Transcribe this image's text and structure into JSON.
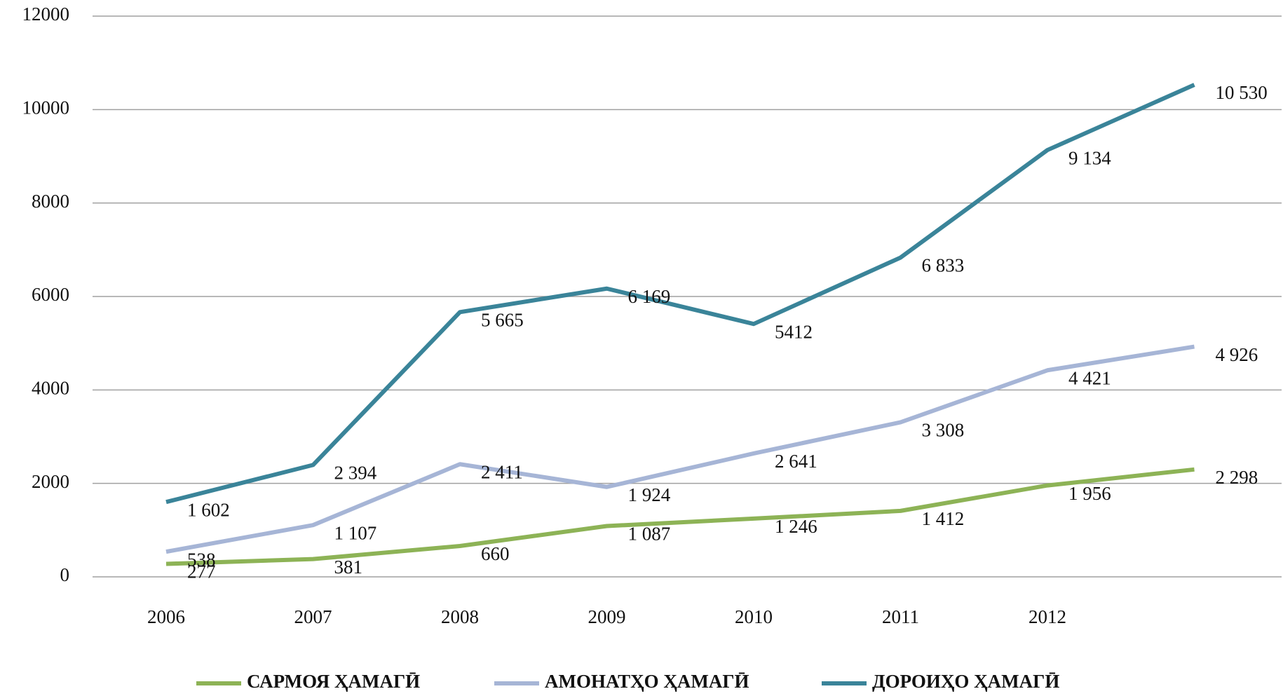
{
  "chart_data": {
    "type": "line",
    "categories": [
      "2006",
      "2007",
      "2008",
      "2009",
      "2010",
      "2011",
      "2012",
      null
    ],
    "series": [
      {
        "name": "САРМОЯ ҲАМАГӢ",
        "color": "#8db356",
        "values": [
          277,
          381,
          660,
          1087,
          1246,
          1412,
          1956,
          2298
        ],
        "value_labels": [
          "277",
          "381",
          "660",
          "1 087",
          "1 246",
          "1 412",
          "1 956",
          "2 298"
        ]
      },
      {
        "name": "АМОНАТҲО ҲАМАГӢ",
        "color": "#a6b5d6",
        "values": [
          538,
          1107,
          2411,
          1924,
          2641,
          3308,
          4421,
          4926
        ],
        "value_labels": [
          "538",
          "1 107",
          "2 411",
          "1 924",
          "2 641",
          "3 308",
          "4 421",
          "4 926"
        ]
      },
      {
        "name": "ДОРОИҲО ҲАМАГӢ",
        "color": "#3a8499",
        "values": [
          1602,
          2394,
          5665,
          6169,
          5412,
          6833,
          9134,
          10530
        ],
        "value_labels": [
          "1 602",
          "2 394",
          "5 665",
          "6 169",
          "5412",
          "6 833",
          "9 134",
          "10 530"
        ]
      }
    ],
    "ylim": [
      0,
      12000
    ],
    "yticks": [
      0,
      2000,
      4000,
      6000,
      8000,
      10000,
      12000
    ],
    "grid": true,
    "legend": "bottom"
  }
}
